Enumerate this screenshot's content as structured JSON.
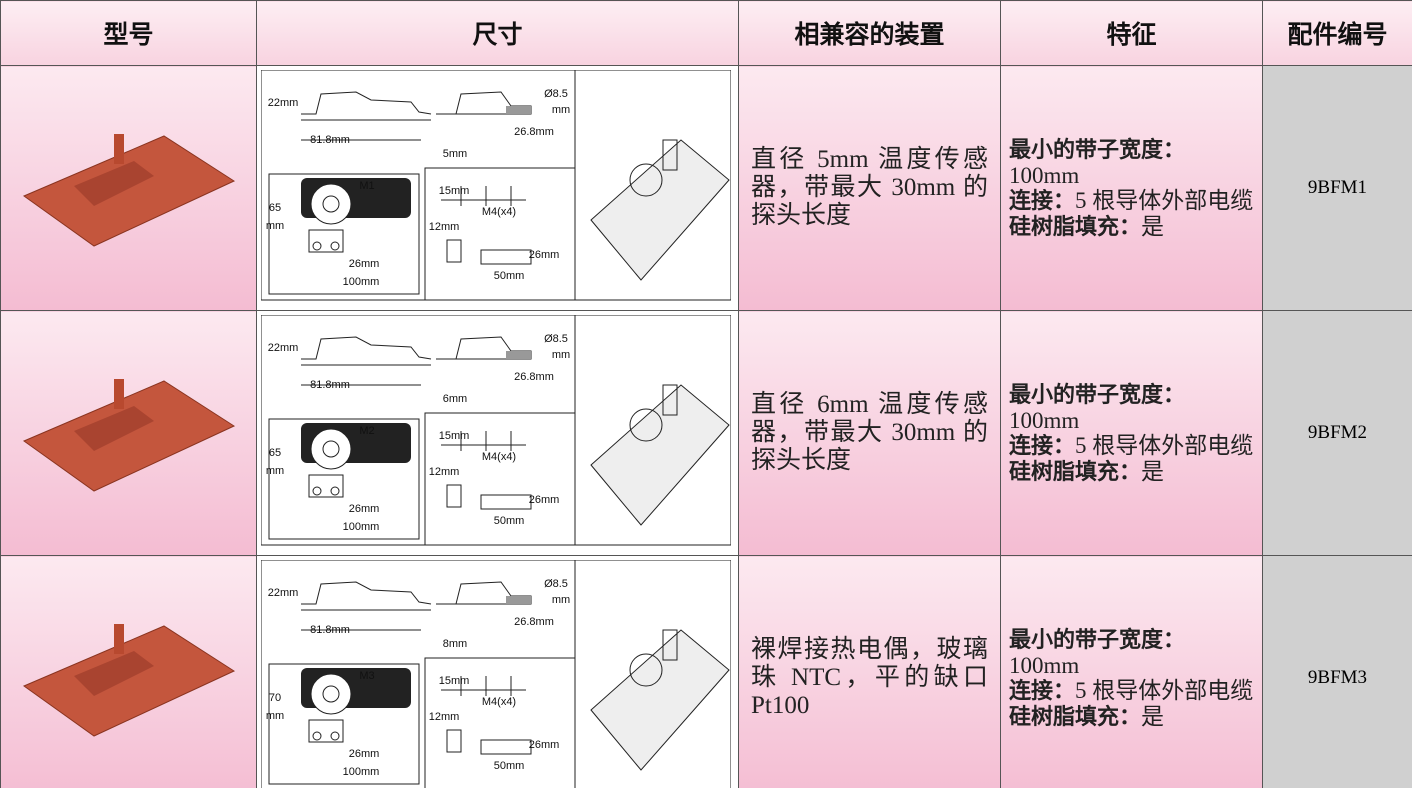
{
  "header": {
    "columns": [
      "型号",
      "尺寸",
      "相兼容的装置",
      "特征",
      "配件编号"
    ]
  },
  "table": {
    "rows": [
      {
        "dimension_labels": [
          "22mm",
          "81.8mm",
          "Ø8.5",
          "mm",
          "26.8mm",
          "5mm",
          "65",
          "mm",
          "M1",
          "26mm",
          "100mm",
          "15mm",
          "M4(x4)",
          "12mm",
          "26mm",
          "50mm"
        ],
        "compatible": "直径 5mm 温度传感器，带最大 30mm 的探头长度",
        "features": [
          {
            "label": "最小的带子宽度：",
            "value": "100mm"
          },
          {
            "label": "连接：",
            "value": "5 根导体外部电缆"
          },
          {
            "label": "硅树脂填充：",
            "value": "是"
          }
        ],
        "part_number": "9BFM1"
      },
      {
        "dimension_labels": [
          "22mm",
          "81.8mm",
          "Ø8.5",
          "mm",
          "26.8mm",
          "6mm",
          "65",
          "mm",
          "M2",
          "26mm",
          "100mm",
          "15mm",
          "M4(x4)",
          "12mm",
          "26mm",
          "50mm"
        ],
        "compatible": "直径 6mm 温度传感器，带最大 30mm 的探头长度",
        "features": [
          {
            "label": "最小的带子宽度：",
            "value": "100mm"
          },
          {
            "label": "连接：",
            "value": "5 根导体外部电缆"
          },
          {
            "label": "硅树脂填充：",
            "value": "是"
          }
        ],
        "part_number": "9BFM2"
      },
      {
        "dimension_labels": [
          "22mm",
          "81.8mm",
          "Ø8.5",
          "mm",
          "26.8mm",
          "8mm",
          "70",
          "mm",
          "M3",
          "26mm",
          "100mm",
          "15mm",
          "M4(x4)",
          "12mm",
          "26mm",
          "50mm"
        ],
        "compatible": "裸焊接热电偶，玻璃珠 NTC，平的缺口 Pt100",
        "features": [
          {
            "label": "最小的带子宽度：",
            "value": "100mm"
          },
          {
            "label": "连接：",
            "value": "5 根导体外部电缆"
          },
          {
            "label": "硅树脂填充：",
            "value": "是"
          }
        ],
        "part_number": "9BFM3"
      }
    ]
  }
}
